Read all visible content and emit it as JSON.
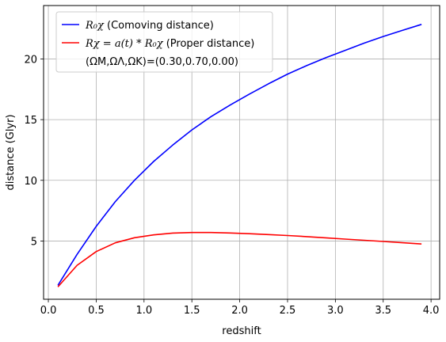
{
  "chart_data": {
    "type": "line",
    "xlabel": "redshift",
    "ylabel": "distance (Glyr)",
    "xlim": [
      -0.05,
      4.09
    ],
    "ylim": [
      0.2,
      24.4
    ],
    "x_ticks": [
      0.0,
      0.5,
      1.0,
      1.5,
      2.0,
      2.5,
      3.0,
      3.5,
      4.0
    ],
    "x_tick_labels": [
      "0.0",
      "0.5",
      "1.0",
      "1.5",
      "2.0",
      "2.5",
      "3.0",
      "3.5",
      "4.0"
    ],
    "y_ticks": [
      5,
      10,
      15,
      20
    ],
    "y_tick_labels": [
      "5",
      "10",
      "15",
      "20"
    ],
    "grid": true,
    "legend_position": "top-left",
    "legend_note": "(ΩM,ΩΛ,ΩK)=(0.30,0.70,0.00)",
    "x": [
      0.1,
      0.3,
      0.5,
      0.7,
      0.9,
      1.1,
      1.3,
      1.5,
      1.7,
      1.9,
      2.1,
      2.3,
      2.5,
      2.7,
      2.9,
      3.1,
      3.3,
      3.5,
      3.7,
      3.9
    ],
    "series": [
      {
        "name": "R₀χ (Comoving distance)",
        "color": "#0000ff",
        "values": [
          1.35,
          3.9,
          6.2,
          8.25,
          10.0,
          11.55,
          12.9,
          14.15,
          15.25,
          16.2,
          17.1,
          17.95,
          18.75,
          19.45,
          20.1,
          20.7,
          21.3,
          21.85,
          22.35,
          22.85
        ]
      },
      {
        "name": "Rχ = a(t) * R₀χ (Proper distance)",
        "color": "#ff0000",
        "values": [
          1.22,
          3.0,
          4.13,
          4.85,
          5.27,
          5.5,
          5.65,
          5.7,
          5.7,
          5.66,
          5.6,
          5.53,
          5.45,
          5.36,
          5.26,
          5.16,
          5.06,
          4.96,
          4.86,
          4.75
        ]
      }
    ]
  },
  "legend": {
    "series0": {
      "math": "R₀χ",
      "text": " (Comoving distance)"
    },
    "series1": {
      "math": "Rχ = a(t) * R₀χ",
      "text": " (Proper distance)"
    },
    "note": "(ΩM,ΩΛ,ΩK)=(0.30,0.70,0.00)"
  }
}
